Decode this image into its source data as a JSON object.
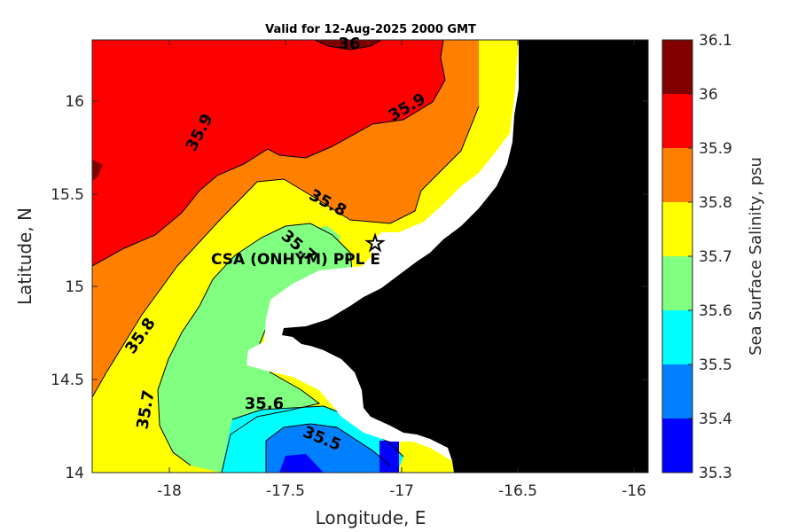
{
  "title": "Valid for 12-Aug-2025 2000 GMT",
  "xlabel": "Longitude, E",
  "ylabel": "Latitude, N",
  "colorbar_label": "Sea Surface Salinity, psu",
  "x_ticks": [
    "-18",
    "-17.5",
    "-17",
    "-16.5",
    "-16"
  ],
  "y_ticks": [
    "14",
    "14.5",
    "15",
    "15.5",
    "16"
  ],
  "colorbar_ticks": [
    "35.3",
    "35.4",
    "35.5",
    "35.6",
    "35.7",
    "35.8",
    "35.9",
    "36",
    "36.1"
  ],
  "colorbar_colors": [
    "#0000ff",
    "#0080ff",
    "#00ffff",
    "#80ff80",
    "#ffff00",
    "#ff8000",
    "#ff0000",
    "#800000"
  ],
  "contour_labels": [
    "36",
    "35.9",
    "35.9",
    "35.8",
    "35.8",
    "35.7",
    "35.7",
    "35.6",
    "35.5"
  ],
  "site_label": "CSA (ONHYM) PPL E",
  "site_marker": "star-icon",
  "land_color": "#000000",
  "chart_data": {
    "type": "heatmap",
    "title": "Valid for 12-Aug-2025 2000 GMT",
    "xlabel": "Longitude, E",
    "ylabel": "Latitude, N",
    "xlim": [
      -18.35,
      -15.95
    ],
    "ylim": [
      14.0,
      16.35
    ],
    "color_scale": {
      "label": "Sea Surface Salinity, psu",
      "levels": [
        35.3,
        35.4,
        35.5,
        35.6,
        35.7,
        35.8,
        35.9,
        36.0,
        36.1
      ]
    },
    "contour_values": [
      36.0,
      35.9,
      35.8,
      35.7,
      35.6,
      35.5
    ],
    "site": {
      "label": "CSA (ONHYM) PPL E",
      "lon": -17.12,
      "lat": 15.22
    }
  }
}
